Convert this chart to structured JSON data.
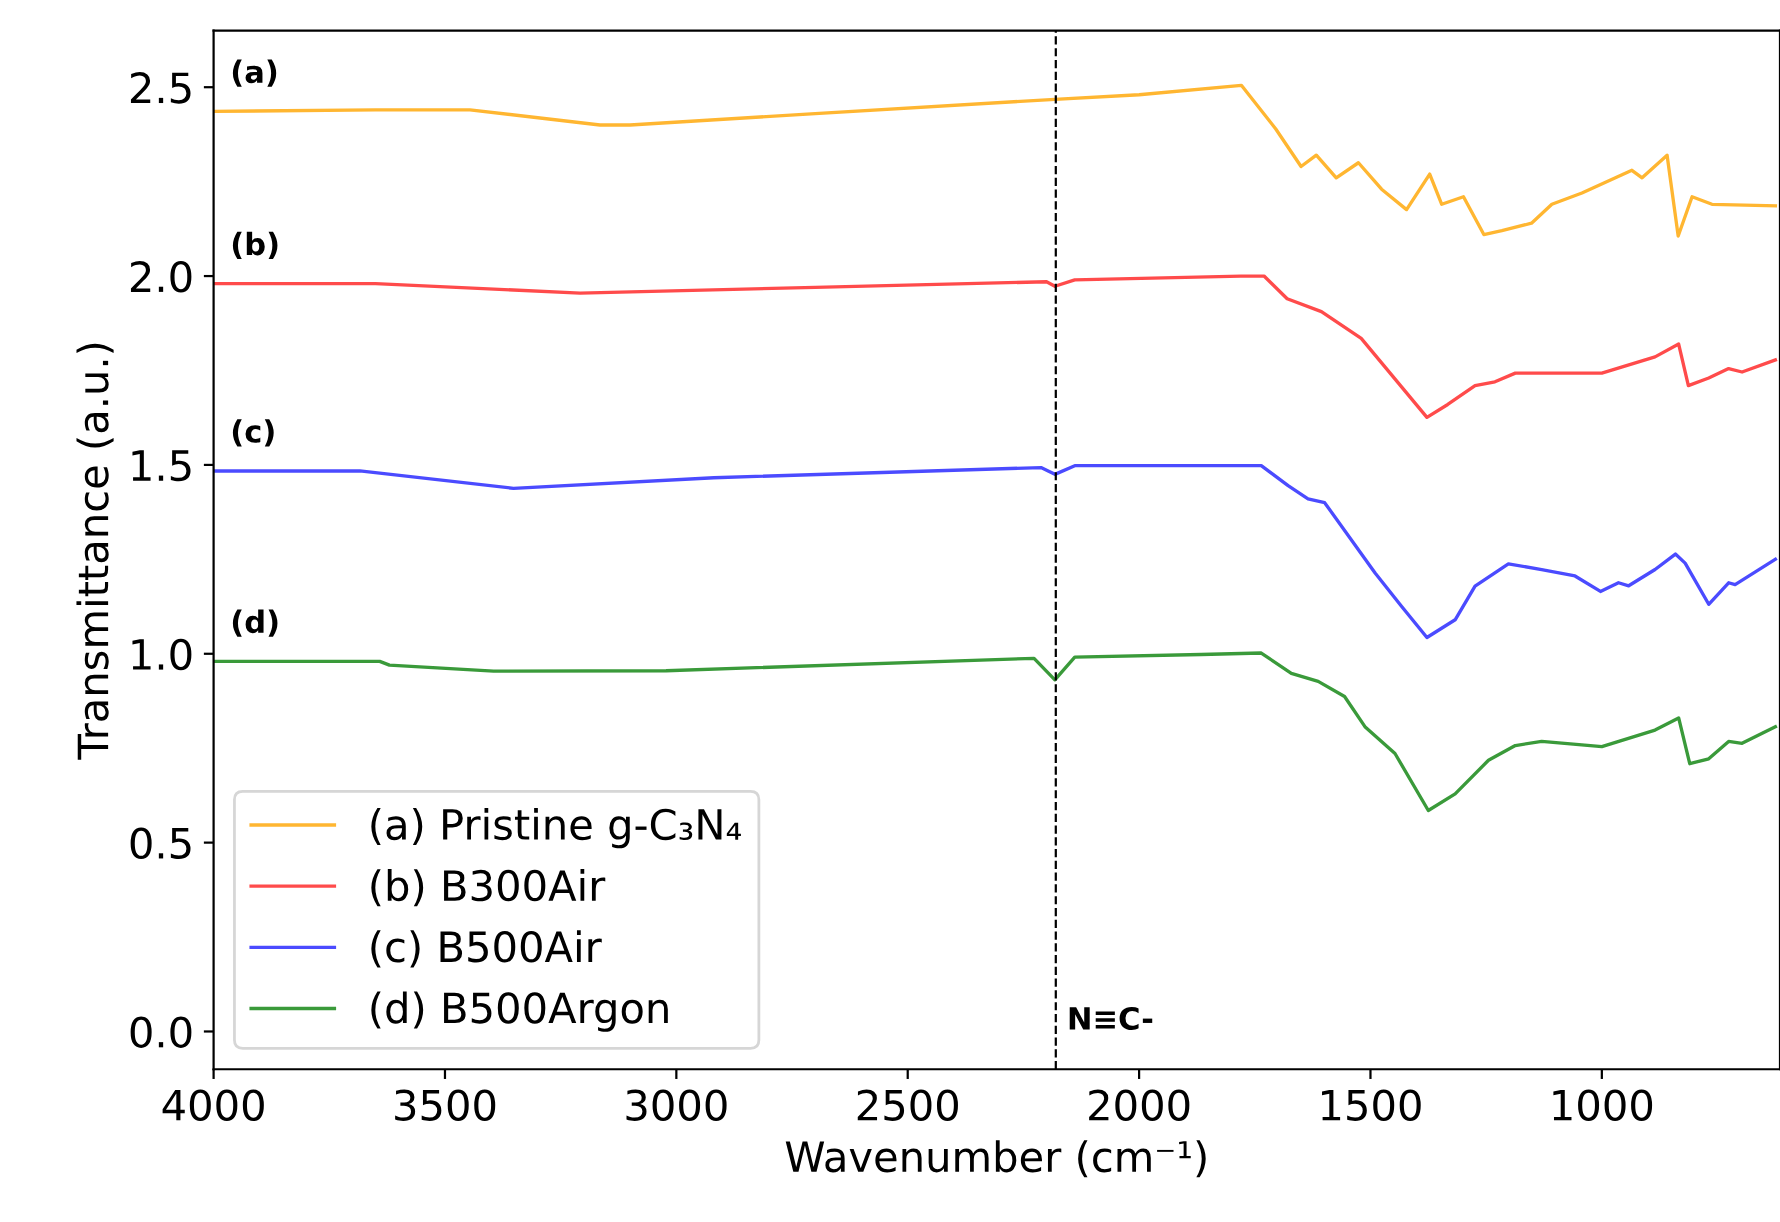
{
  "chart_data": {
    "type": "line",
    "xlabel": "Wavenumber (cm⁻¹)",
    "ylabel": "Transmittance (a.u.)",
    "xlim": [
      4000,
      615
    ],
    "ylim": [
      -0.1,
      2.65
    ],
    "xticks": [
      4000,
      3500,
      3000,
      2500,
      2000,
      1500,
      1000
    ],
    "yticks": [
      {
        "value": 0,
        "label": "0.0"
      },
      0.5,
      {
        "value": 1,
        "label": "1.0"
      },
      1.5,
      {
        "value": 2,
        "label": "2.0"
      },
      2.5
    ],
    "grid": false,
    "legend": "bottom left",
    "marker": "none",
    "line_style": "solid",
    "ref_lines": [
      {
        "axis": "x",
        "value": 2180,
        "label": "N≡C-",
        "color": "#000000",
        "line_style": "dashed"
      }
    ],
    "annotations": [
      "(a)",
      "(b)",
      "(c)",
      "(d)"
    ],
    "series": [
      {
        "name": "(a) Pristine g-C₃N₄",
        "color": "#ffb631",
        "x": [
          4000,
          3650,
          3446,
          3165,
          3100,
          2700,
          2182,
          2000,
          1779,
          1705,
          1650,
          1617,
          1574,
          1526,
          1476,
          1422,
          1372,
          1346,
          1299,
          1255,
          1216,
          1152,
          1108,
          1043,
          935,
          913,
          859,
          835,
          805,
          762,
          625
        ],
        "values": [
          2.436,
          2.44,
          2.44,
          2.4,
          2.4,
          2.43,
          2.468,
          2.48,
          2.505,
          2.39,
          2.29,
          2.32,
          2.26,
          2.3,
          2.23,
          2.176,
          2.27,
          2.19,
          2.21,
          2.11,
          2.12,
          2.14,
          2.19,
          2.22,
          2.28,
          2.26,
          2.32,
          2.106,
          2.21,
          2.19,
          2.186
        ]
      },
      {
        "name": "(b) B300Air",
        "color": "#ff4b4b",
        "x": [
          4000,
          3650,
          3208,
          2700,
          2200,
          2182,
          2139,
          1780,
          1730,
          1680,
          1606,
          1520,
          1378,
          1333,
          1274,
          1231,
          1187,
          1000,
          885,
          834,
          813,
          769,
          726,
          697,
          625
        ],
        "values": [
          1.98,
          1.98,
          1.955,
          1.97,
          1.985,
          1.973,
          1.99,
          2.0,
          2.0,
          1.94,
          1.906,
          1.835,
          1.626,
          1.66,
          1.71,
          1.72,
          1.743,
          1.743,
          1.786,
          1.82,
          1.71,
          1.73,
          1.755,
          1.746,
          1.778
        ]
      },
      {
        "name": "(c) B500Air",
        "color": "#4b4bff",
        "x": [
          4000,
          3684,
          3352,
          2919,
          2212,
          2182,
          2139,
          1866,
          1736,
          1678,
          1635,
          1599,
          1490,
          1433,
          1378,
          1317,
          1274,
          1202,
          1130,
          1058,
          1003,
          964,
          942,
          885,
          841,
          820,
          769,
          726,
          712,
          625
        ],
        "values": [
          1.484,
          1.484,
          1.438,
          1.466,
          1.493,
          1.475,
          1.498,
          1.498,
          1.498,
          1.445,
          1.41,
          1.4,
          1.214,
          1.126,
          1.043,
          1.09,
          1.179,
          1.238,
          1.223,
          1.206,
          1.165,
          1.188,
          1.18,
          1.223,
          1.264,
          1.24,
          1.131,
          1.188,
          1.183,
          1.25
        ]
      },
      {
        "name": "(d) B500Argon",
        "color": "#3a9a3a",
        "x": [
          4000,
          3641,
          3620,
          3395,
          3022,
          2227,
          2182,
          2139,
          1866,
          1736,
          1671,
          1613,
          1556,
          1512,
          1447,
          1375,
          1317,
          1245,
          1187,
          1130,
          1000,
          885,
          834,
          810,
          769,
          726,
          697,
          625
        ],
        "values": [
          0.98,
          0.98,
          0.97,
          0.954,
          0.955,
          0.988,
          0.931,
          0.991,
          0.998,
          1.002,
          0.948,
          0.927,
          0.887,
          0.807,
          0.736,
          0.585,
          0.629,
          0.718,
          0.757,
          0.768,
          0.754,
          0.798,
          0.83,
          0.709,
          0.722,
          0.768,
          0.763,
          0.807
        ]
      }
    ]
  }
}
